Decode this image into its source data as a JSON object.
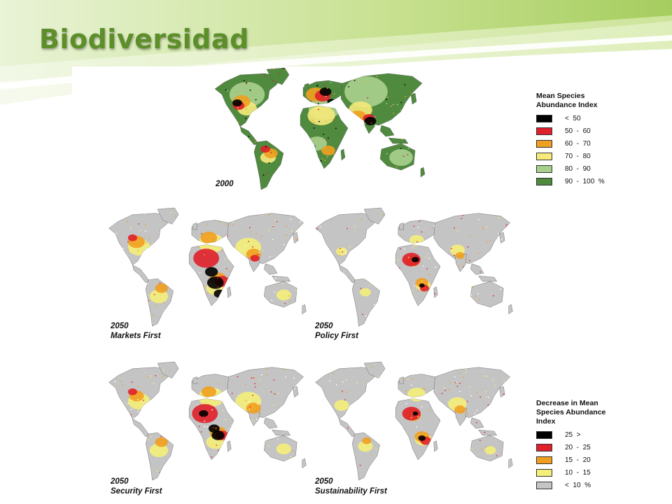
{
  "slide": {
    "title": "Biodiversidad",
    "colors": {
      "title": "#5c8f2a",
      "band_dark": "#a6cd5f",
      "band_light": "#e6f1cf"
    }
  },
  "maps": [
    {
      "id": "2000",
      "year": "2000",
      "scenario": "",
      "dominant_class": "90 - 100 %"
    },
    {
      "id": "markets",
      "year": "2050",
      "scenario": "Markets First"
    },
    {
      "id": "policy",
      "year": "2050",
      "scenario": "Policy First"
    },
    {
      "id": "security",
      "year": "2050",
      "scenario": "Security First"
    },
    {
      "id": "sustainability",
      "year": "2050",
      "scenario": "Sustainability First"
    }
  ],
  "legend_abundance": {
    "title_line1": "Mean Species",
    "title_line2": "Abundance Index",
    "items": [
      {
        "label": "<  50",
        "color": "#000000"
      },
      {
        "label": "50  -  60",
        "color": "#e0202a"
      },
      {
        "label": "60  -  70",
        "color": "#f0a020"
      },
      {
        "label": "70  -  80",
        "color": "#f5ea7a"
      },
      {
        "label": "80  -  90",
        "color": "#a8d08d"
      },
      {
        "label": "90  -  100  %",
        "color": "#4f8a3f"
      }
    ]
  },
  "legend_decrease": {
    "title_line1": "Decrease in Mean",
    "title_line2": "Species Abundance",
    "title_line3": "Index",
    "items": [
      {
        "label": "25  >",
        "color": "#000000"
      },
      {
        "label": "20  -  25",
        "color": "#e0202a"
      },
      {
        "label": "15  -  20",
        "color": "#f0a020"
      },
      {
        "label": "10  -  15",
        "color": "#f5f07a"
      },
      {
        "label": "<  10  %",
        "color": "#c4c4c4"
      }
    ]
  }
}
